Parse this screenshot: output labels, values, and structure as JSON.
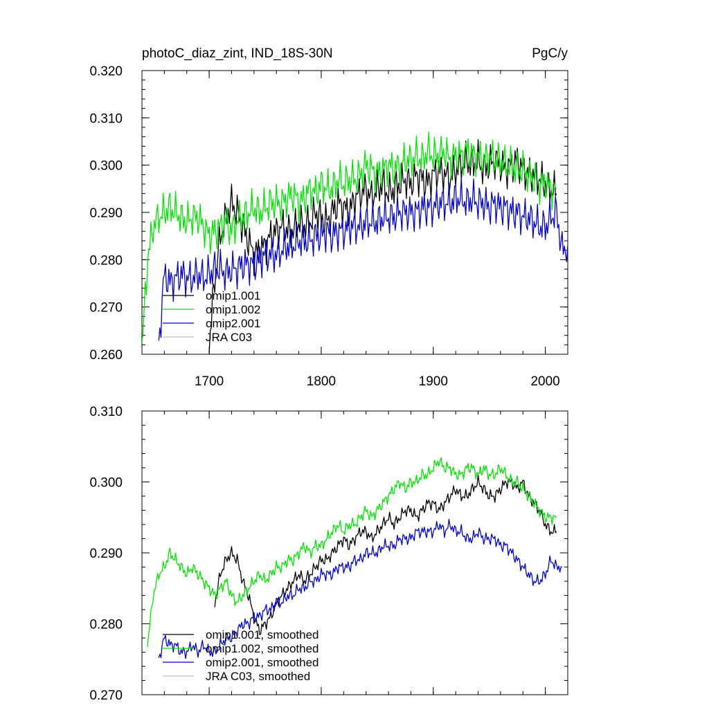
{
  "chart_data": [
    {
      "type": "line",
      "title": "photoC_diaz_zint, IND_18S-30N",
      "units": "PgC/y",
      "xlim": [
        1640,
        2020
      ],
      "ylim": [
        0.26,
        0.32
      ],
      "x_ticks": [
        1700,
        1800,
        1900,
        2000
      ],
      "x_tick_labels": [
        "1700",
        "1800",
        "1900",
        "2000"
      ],
      "y_ticks": [
        0.26,
        0.27,
        0.28,
        0.29,
        0.3,
        0.31,
        0.32
      ],
      "y_tick_labels": [
        "0.260",
        "0.270",
        "0.280",
        "0.290",
        "0.300",
        "0.310",
        "0.320"
      ],
      "legend_position": "lower-left",
      "series": [
        {
          "name": "omip1.001",
          "color": "#000000",
          "x_start": 1700,
          "x_end": 2010,
          "step": 5,
          "values": [
            0.262,
            0.276,
            0.285,
            0.289,
            0.292,
            0.29,
            0.287,
            0.284,
            0.281,
            0.282,
            0.283,
            0.285,
            0.286,
            0.287,
            0.286,
            0.286,
            0.288,
            0.287,
            0.288,
            0.29,
            0.289,
            0.288,
            0.29,
            0.292,
            0.291,
            0.29,
            0.293,
            0.294,
            0.295,
            0.293,
            0.295,
            0.296,
            0.294,
            0.295,
            0.296,
            0.297,
            0.296,
            0.298,
            0.297,
            0.296,
            0.298,
            0.299,
            0.298,
            0.297,
            0.299,
            0.3,
            0.301,
            0.3,
            0.301,
            0.299,
            0.3,
            0.301,
            0.3,
            0.299,
            0.3,
            0.301,
            0.299,
            0.298,
            0.298,
            0.297,
            0.296,
            0.295,
            0.294
          ]
        },
        {
          "name": "omip1.002",
          "color": "#00e600",
          "x_start": 1640,
          "x_end": 2010,
          "step": 5,
          "values": [
            0.261,
            0.28,
            0.287,
            0.289,
            0.29,
            0.291,
            0.29,
            0.289,
            0.288,
            0.289,
            0.289,
            0.287,
            0.285,
            0.286,
            0.287,
            0.288,
            0.286,
            0.288,
            0.289,
            0.29,
            0.291,
            0.29,
            0.291,
            0.292,
            0.292,
            0.292,
            0.293,
            0.294,
            0.292,
            0.293,
            0.295,
            0.294,
            0.296,
            0.295,
            0.295,
            0.297,
            0.296,
            0.297,
            0.297,
            0.298,
            0.3,
            0.299,
            0.298,
            0.299,
            0.3,
            0.299,
            0.3,
            0.301,
            0.301,
            0.302,
            0.301,
            0.303,
            0.302,
            0.302,
            0.303,
            0.301,
            0.302,
            0.302,
            0.303,
            0.302,
            0.302,
            0.301,
            0.302,
            0.301,
            0.301,
            0.3,
            0.3,
            0.299,
            0.299,
            0.298,
            0.297,
            0.296,
            0.296,
            0.295,
            0.295
          ]
        },
        {
          "name": "omip2.001",
          "color": "#0000e0",
          "x_start": 1655,
          "x_end": 2020,
          "step": 5,
          "values": [
            0.262,
            0.277,
            0.275,
            0.276,
            0.277,
            0.276,
            0.276,
            0.277,
            0.276,
            0.277,
            0.278,
            0.278,
            0.277,
            0.278,
            0.278,
            0.279,
            0.279,
            0.279,
            0.28,
            0.281,
            0.281,
            0.281,
            0.282,
            0.283,
            0.283,
            0.284,
            0.284,
            0.284,
            0.285,
            0.285,
            0.286,
            0.285,
            0.286,
            0.286,
            0.287,
            0.287,
            0.287,
            0.288,
            0.288,
            0.288,
            0.289,
            0.289,
            0.289,
            0.29,
            0.29,
            0.29,
            0.29,
            0.291,
            0.291,
            0.291,
            0.292,
            0.292,
            0.292,
            0.293,
            0.293,
            0.292,
            0.293,
            0.292,
            0.292,
            0.291,
            0.292,
            0.291,
            0.291,
            0.29,
            0.29,
            0.289,
            0.289,
            0.288,
            0.287,
            0.287,
            0.289,
            0.29,
            0.282,
            0.283
          ]
        },
        {
          "name": "JRA C03",
          "color": "#c0c0c0",
          "x_start": 1640,
          "x_end": 1640,
          "step": 5,
          "values": []
        }
      ]
    },
    {
      "type": "line",
      "xlim": [
        1640,
        2020
      ],
      "ylim": [
        0.27,
        0.31
      ],
      "x_ticks": [
        1700,
        1800,
        1900,
        2000
      ],
      "y_ticks": [
        0.27,
        0.28,
        0.29,
        0.3,
        0.31
      ],
      "y_tick_labels": [
        "0.270",
        "0.280",
        "0.290",
        "0.300",
        "0.310"
      ],
      "legend_position": "lower-left",
      "series": [
        {
          "name": "omip1.001, smoothed",
          "color": "#000000",
          "x_start": 1705,
          "x_end": 2010,
          "step": 5,
          "values": [
            0.283,
            0.287,
            0.289,
            0.29,
            0.289,
            0.286,
            0.284,
            0.281,
            0.279,
            0.28,
            0.281,
            0.283,
            0.284,
            0.285,
            0.286,
            0.287,
            0.286,
            0.287,
            0.288,
            0.289,
            0.289,
            0.29,
            0.291,
            0.292,
            0.291,
            0.292,
            0.293,
            0.293,
            0.292,
            0.293,
            0.294,
            0.295,
            0.294,
            0.295,
            0.296,
            0.296,
            0.295,
            0.296,
            0.297,
            0.297,
            0.296,
            0.297,
            0.298,
            0.299,
            0.298,
            0.298,
            0.299,
            0.3,
            0.299,
            0.298,
            0.298,
            0.299,
            0.3,
            0.3,
            0.299,
            0.3,
            0.298,
            0.297,
            0.296,
            0.294,
            0.293,
            0.293
          ]
        },
        {
          "name": "omip1.002, smoothed",
          "color": "#00e600",
          "x_start": 1645,
          "x_end": 2010,
          "step": 5,
          "values": [
            0.277,
            0.284,
            0.287,
            0.288,
            0.29,
            0.289,
            0.288,
            0.287,
            0.288,
            0.287,
            0.286,
            0.285,
            0.284,
            0.285,
            0.286,
            0.284,
            0.283,
            0.284,
            0.285,
            0.286,
            0.287,
            0.286,
            0.287,
            0.288,
            0.288,
            0.289,
            0.289,
            0.29,
            0.291,
            0.29,
            0.291,
            0.291,
            0.292,
            0.293,
            0.294,
            0.293,
            0.294,
            0.294,
            0.295,
            0.296,
            0.295,
            0.296,
            0.297,
            0.298,
            0.299,
            0.3,
            0.299,
            0.3,
            0.3,
            0.301,
            0.301,
            0.302,
            0.303,
            0.302,
            0.302,
            0.301,
            0.301,
            0.302,
            0.302,
            0.301,
            0.302,
            0.301,
            0.301,
            0.302,
            0.301,
            0.3,
            0.3,
            0.299,
            0.298,
            0.297,
            0.296,
            0.295,
            0.295,
            0.295
          ]
        },
        {
          "name": "omip2.001, smoothed",
          "color": "#0000e0",
          "x_start": 1655,
          "x_end": 2015,
          "step": 5,
          "values": [
            0.275,
            0.278,
            0.277,
            0.277,
            0.276,
            0.276,
            0.277,
            0.276,
            0.277,
            0.276,
            0.276,
            0.277,
            0.278,
            0.278,
            0.279,
            0.28,
            0.28,
            0.281,
            0.281,
            0.282,
            0.282,
            0.283,
            0.283,
            0.284,
            0.284,
            0.285,
            0.285,
            0.286,
            0.286,
            0.287,
            0.287,
            0.287,
            0.288,
            0.288,
            0.288,
            0.289,
            0.289,
            0.29,
            0.29,
            0.29,
            0.291,
            0.291,
            0.291,
            0.292,
            0.292,
            0.292,
            0.293,
            0.293,
            0.293,
            0.293,
            0.294,
            0.293,
            0.294,
            0.293,
            0.293,
            0.292,
            0.292,
            0.293,
            0.292,
            0.292,
            0.292,
            0.291,
            0.291,
            0.29,
            0.289,
            0.288,
            0.287,
            0.286,
            0.286,
            0.287,
            0.289,
            0.288,
            0.288
          ]
        },
        {
          "name": "JRA C03, smoothed",
          "color": "#c0c0c0",
          "x_start": 1640,
          "x_end": 1640,
          "step": 5,
          "values": []
        }
      ]
    }
  ]
}
